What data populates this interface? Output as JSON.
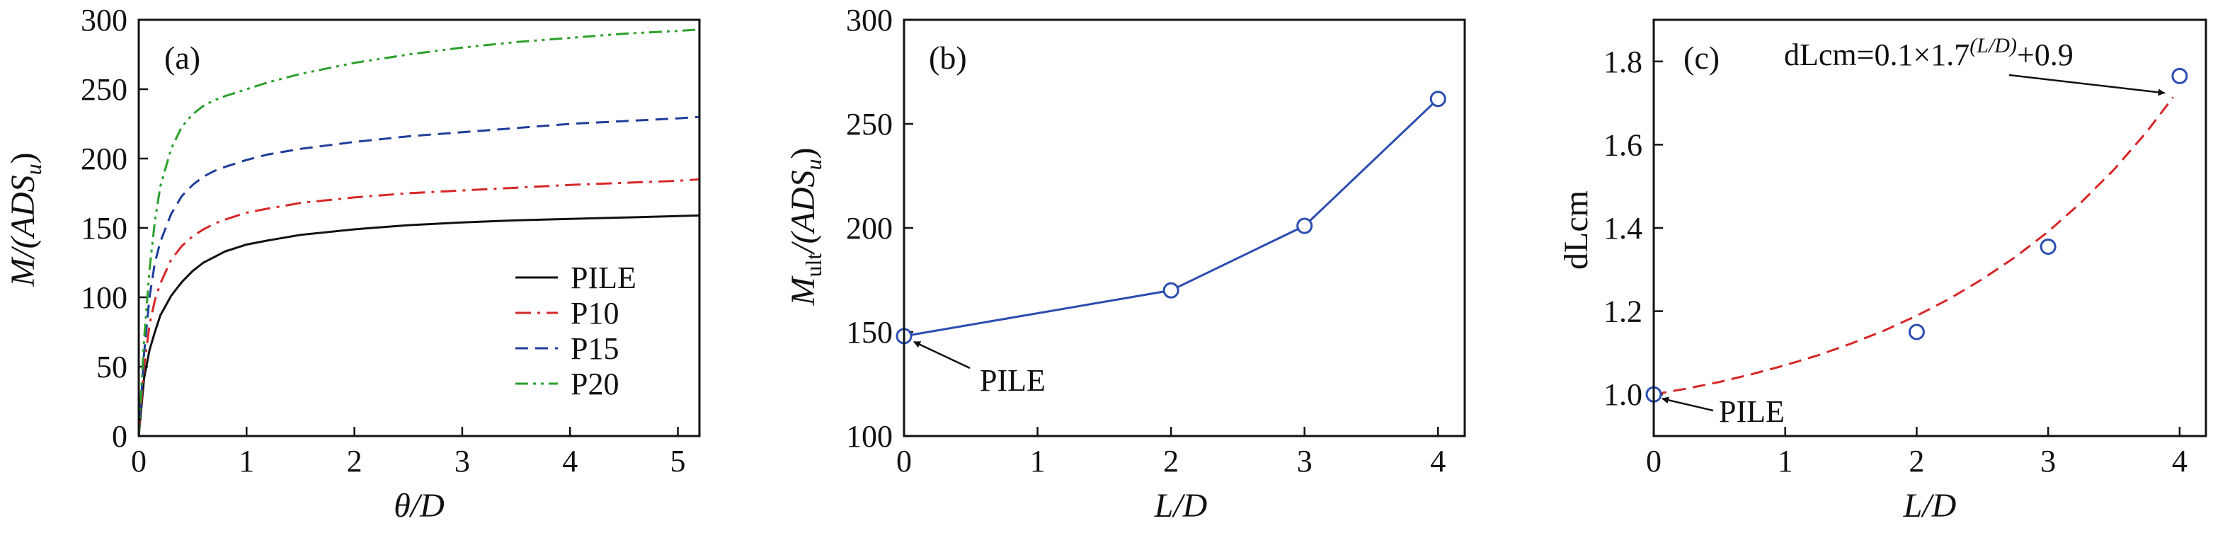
{
  "colors": {
    "axis": "#111111",
    "pile": "#111111",
    "p10": "#d62728",
    "p15": "#1f3d99",
    "p20": "#2ca02c",
    "marker": "#2b4db0",
    "fit": "#d62728"
  },
  "chart_data": [
    {
      "type": "line",
      "panel": "(a)",
      "xlabel": "θ/D",
      "ylabel": "M/(ADSu)",
      "ylabel_main": "M/(ADS",
      "ylabel_sub": "u",
      "ylabel_end": ")",
      "xlim": [
        0,
        5.2
      ],
      "ylim": [
        0,
        300
      ],
      "xticks": [
        0,
        1,
        2,
        3,
        4,
        5
      ],
      "yticks": [
        0,
        50,
        100,
        150,
        200,
        250,
        300
      ],
      "legend_position": "lower-right",
      "series": [
        {
          "name": "PILE",
          "color_key": "pile",
          "style": "solid",
          "x": [
            0,
            0.05,
            0.1,
            0.15,
            0.2,
            0.3,
            0.4,
            0.5,
            0.6,
            0.7,
            0.8,
            1.0,
            1.2,
            1.5,
            2.0,
            2.5,
            3.0,
            3.5,
            4.0,
            4.5,
            5.0,
            5.2
          ],
          "y": [
            0,
            42,
            62,
            75,
            87,
            101,
            111,
            119,
            125,
            129,
            133,
            138,
            141,
            145,
            149,
            152,
            154,
            155.5,
            156.5,
            157.5,
            158.5,
            159
          ]
        },
        {
          "name": "P10",
          "color_key": "p10",
          "style": "dashdot",
          "x": [
            0,
            0.05,
            0.1,
            0.15,
            0.2,
            0.3,
            0.4,
            0.5,
            0.6,
            0.7,
            0.8,
            1.0,
            1.2,
            1.5,
            2.0,
            2.5,
            3.0,
            3.5,
            4.0,
            4.5,
            5.0,
            5.2
          ],
          "y": [
            0,
            50,
            80,
            98,
            110,
            127,
            137,
            144,
            149,
            153,
            156,
            161,
            164,
            168,
            172,
            175,
            177,
            179,
            181,
            182.5,
            184,
            185
          ]
        },
        {
          "name": "P15",
          "color_key": "p15",
          "style": "dashed",
          "x": [
            0,
            0.05,
            0.1,
            0.15,
            0.2,
            0.3,
            0.4,
            0.5,
            0.6,
            0.7,
            0.8,
            1.0,
            1.2,
            1.5,
            2.0,
            2.5,
            3.0,
            3.5,
            4.0,
            4.5,
            5.0,
            5.2
          ],
          "y": [
            0,
            60,
            100,
            125,
            140,
            160,
            173,
            181,
            187,
            191,
            194,
            199,
            203,
            207,
            212,
            216,
            219,
            222,
            225,
            227,
            229,
            230
          ]
        },
        {
          "name": "P20",
          "color_key": "p20",
          "style": "dashdotdot",
          "x": [
            0,
            0.05,
            0.1,
            0.15,
            0.2,
            0.3,
            0.4,
            0.5,
            0.6,
            0.7,
            0.8,
            1.0,
            1.2,
            1.5,
            2.0,
            2.5,
            3.0,
            3.5,
            4.0,
            4.5,
            5.0,
            5.2
          ],
          "y": [
            0,
            70,
            120,
            155,
            180,
            207,
            223,
            232,
            238,
            242,
            245,
            250,
            255,
            261,
            269,
            275,
            280,
            284,
            287,
            290,
            292,
            293
          ]
        }
      ]
    },
    {
      "type": "line",
      "panel": "(b)",
      "xlabel": "L/D",
      "ylabel": "Mult/(ADSu)",
      "ylabel_main": "M",
      "ylabel_sub1": "ult",
      "ylabel_mid": "/(ADS",
      "ylabel_sub2": "u",
      "ylabel_end": ")",
      "xlim": [
        0,
        4.2
      ],
      "ylim": [
        100,
        300
      ],
      "xticks": [
        0,
        1,
        2,
        3,
        4
      ],
      "yticks": [
        100,
        150,
        200,
        250,
        300
      ],
      "series": [
        {
          "color_key": "marker",
          "style": "solid-marker",
          "x": [
            0,
            2,
            3,
            4
          ],
          "y": [
            148,
            170,
            201,
            262
          ]
        }
      ],
      "annotations": [
        {
          "text": "PILE",
          "target_x": 0,
          "target_y": 148
        }
      ]
    },
    {
      "type": "scatter",
      "panel": "(c)",
      "xlabel": "L/D",
      "ylabel": "dLcm",
      "xlim": [
        0,
        4.2
      ],
      "ylim": [
        0.9,
        1.9
      ],
      "xticks": [
        0,
        1,
        2,
        3,
        4
      ],
      "yticks": [
        1.0,
        1.2,
        1.4,
        1.6,
        1.8
      ],
      "series": [
        {
          "color_key": "marker",
          "style": "marker",
          "x": [
            0,
            2,
            3,
            4
          ],
          "y": [
            1.0,
            1.15,
            1.355,
            1.765
          ]
        }
      ],
      "fit": {
        "color_key": "fit",
        "style": "dashed",
        "x": [
          0,
          0.25,
          0.5,
          0.75,
          1.0,
          1.25,
          1.5,
          1.75,
          2.0,
          2.25,
          2.5,
          2.75,
          3.0,
          3.25,
          3.5,
          3.75,
          3.95
        ],
        "y": [
          1.0,
          1.014,
          1.03,
          1.049,
          1.07,
          1.094,
          1.122,
          1.153,
          1.189,
          1.23,
          1.277,
          1.33,
          1.391,
          1.461,
          1.54,
          1.631,
          1.714
        ]
      },
      "annotations": [
        {
          "text": "PILE",
          "target_x": 0,
          "target_y": 1.0
        },
        {
          "text_main": "dLcm=0.1×1.7",
          "text_sup": "(L/D)",
          "text_end": "+0.9",
          "target_x": 3.95,
          "target_y": 1.714
        }
      ]
    }
  ]
}
